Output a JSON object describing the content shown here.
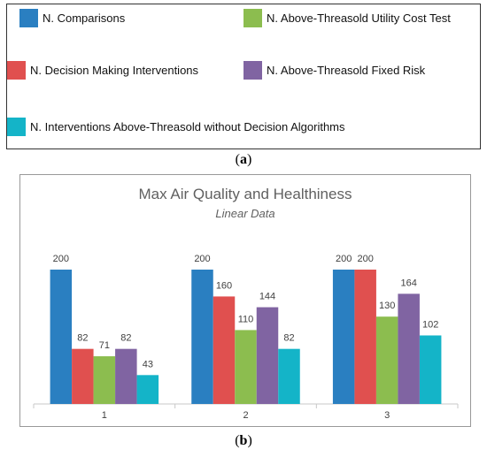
{
  "legend": {
    "items": [
      {
        "label": "N. Comparisons",
        "color": "#2a7fc1"
      },
      {
        "label": "N. Above-Threasold Utility Cost Test",
        "color": "#8cbd4f"
      },
      {
        "label": "N. Decision Making Interventions",
        "color": "#e0504f"
      },
      {
        "label": "N. Above-Threasold Fixed Risk",
        "color": "#8064a2"
      },
      {
        "label": "N. Interventions Above-Threasold without Decision Algorithms",
        "color": "#14b4c8"
      }
    ]
  },
  "captions": {
    "a_letter": "a",
    "b_letter": "b"
  },
  "chart_data": {
    "type": "bar",
    "title": "Max Air Quality and Healthiness",
    "subtitle": "Linear Data",
    "categories": [
      "1",
      "2",
      "3"
    ],
    "ylim": [
      0,
      220
    ],
    "grid": false,
    "series": [
      {
        "color": "#2a7fc1",
        "values": [
          200,
          200,
          200
        ]
      },
      {
        "color": "#e0504f",
        "values": [
          82,
          160,
          200
        ]
      },
      {
        "color": "#8cbd4f",
        "values": [
          71,
          110,
          130
        ]
      },
      {
        "color": "#8064a2",
        "values": [
          82,
          144,
          164
        ]
      },
      {
        "color": "#14b4c8",
        "values": [
          43,
          82,
          102
        ]
      }
    ]
  }
}
